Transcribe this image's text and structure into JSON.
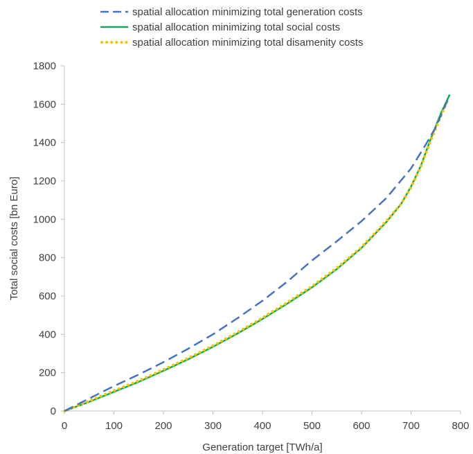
{
  "chart_data": {
    "type": "line",
    "xlabel": "Generation target [TWh/a]",
    "ylabel": "Total social costs [bn Euro]",
    "xlim": [
      0,
      800
    ],
    "ylim": [
      0,
      1800
    ],
    "xticks": [
      0,
      100,
      200,
      300,
      400,
      500,
      600,
      700,
      800
    ],
    "yticks": [
      0,
      200,
      400,
      600,
      800,
      1000,
      1200,
      1400,
      1600,
      1800
    ],
    "grid": false,
    "legend_position": "top",
    "series": [
      {
        "name": "spatial allocation minimizing total generation costs",
        "color": "#4472C4",
        "style": "dashed",
        "x": [
          0,
          50,
          100,
          150,
          200,
          250,
          300,
          350,
          400,
          450,
          500,
          550,
          600,
          650,
          700,
          730,
          750,
          765,
          778
        ],
        "y": [
          0,
          65,
          130,
          190,
          255,
          325,
          400,
          485,
          575,
          675,
          785,
          885,
          990,
          1110,
          1265,
          1390,
          1480,
          1570,
          1645
        ]
      },
      {
        "name": "spatial allocation minimizing total social costs",
        "color": "#00B050",
        "style": "solid",
        "x": [
          0,
          50,
          100,
          150,
          200,
          250,
          300,
          350,
          400,
          450,
          500,
          550,
          600,
          650,
          680,
          700,
          720,
          740,
          760,
          778
        ],
        "y": [
          0,
          48,
          100,
          152,
          210,
          270,
          335,
          405,
          480,
          560,
          645,
          740,
          850,
          985,
          1080,
          1170,
          1280,
          1420,
          1550,
          1650
        ]
      },
      {
        "name": "spatial allocation minimizing total disamenity costs",
        "color": "#FFC000",
        "style": "dotted",
        "x": [
          0,
          50,
          100,
          150,
          200,
          250,
          300,
          350,
          400,
          450,
          500,
          550,
          600,
          650,
          680,
          700,
          720,
          740,
          760,
          775
        ],
        "y": [
          0,
          52,
          106,
          158,
          216,
          276,
          341,
          411,
          486,
          566,
          651,
          746,
          855,
          990,
          1080,
          1165,
          1275,
          1410,
          1535,
          1625
        ]
      }
    ]
  }
}
